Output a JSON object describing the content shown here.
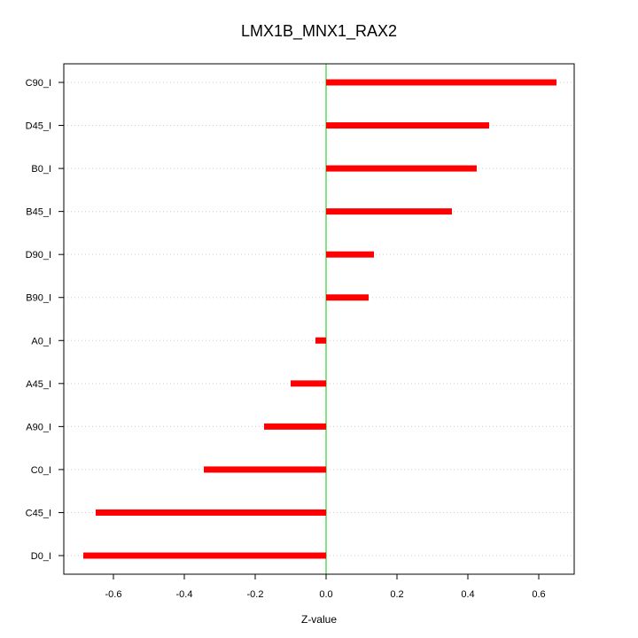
{
  "chart_data": {
    "type": "bar",
    "orientation": "horizontal",
    "title": "LMX1B_MNX1_RAX2",
    "xlabel": "Z-value",
    "ylabel": "",
    "xlim": [
      -0.74,
      0.7
    ],
    "xticks": [
      "-0.6",
      "-0.4",
      "-0.2",
      "0.0",
      "0.2",
      "0.4",
      "0.6"
    ],
    "categories": [
      "C90_I",
      "D45_I",
      "B0_I",
      "B45_I",
      "D90_I",
      "B90_I",
      "A0_I",
      "A45_I",
      "A90_I",
      "C0_I",
      "C45_I",
      "D0_I"
    ],
    "values": [
      0.65,
      0.46,
      0.425,
      0.355,
      0.135,
      0.12,
      -0.03,
      -0.1,
      -0.175,
      -0.345,
      -0.65,
      -0.685
    ],
    "grid": "horizontal dotted",
    "reference_line": 0,
    "colors": {
      "bar": "#ff0000",
      "zero_line": "#00cc00",
      "grid": "#cccccc",
      "axis": "#000000"
    }
  }
}
